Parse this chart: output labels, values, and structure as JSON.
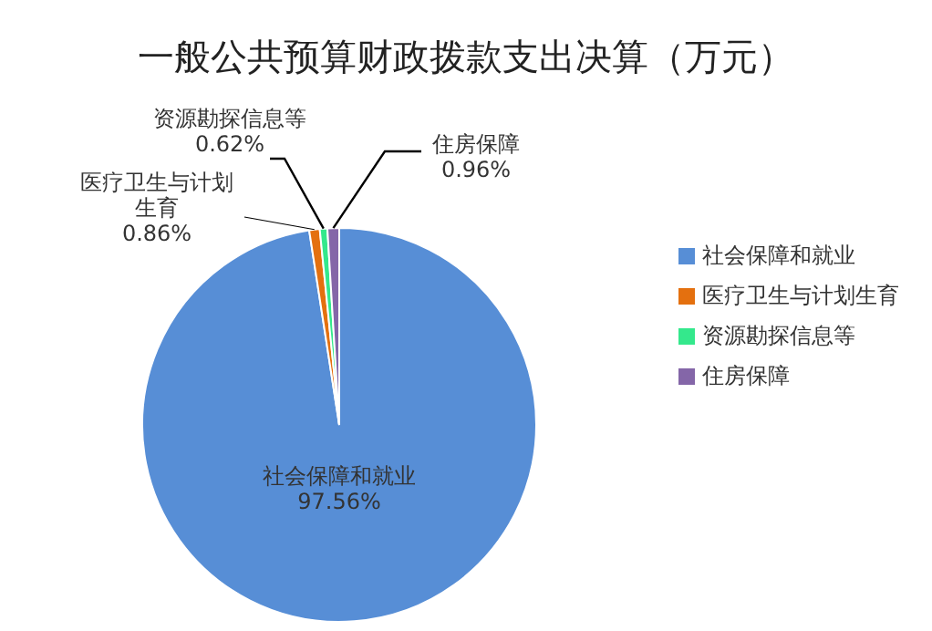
{
  "chart_data": {
    "type": "pie",
    "title": "一般公共预算财政拨款支出决算（万元）",
    "categories": [
      "社会保障和就业",
      "医疗卫生与计划生育",
      "资源勘探信息等",
      "住房保障"
    ],
    "values": [
      97.56,
      0.86,
      0.62,
      0.96
    ],
    "colors": [
      "#578ed6",
      "#e4700f",
      "#34e88c",
      "#8466a8"
    ],
    "value_labels": [
      "97.56%",
      "0.86%",
      "0.62%",
      "0.96%"
    ],
    "legend": "right"
  }
}
